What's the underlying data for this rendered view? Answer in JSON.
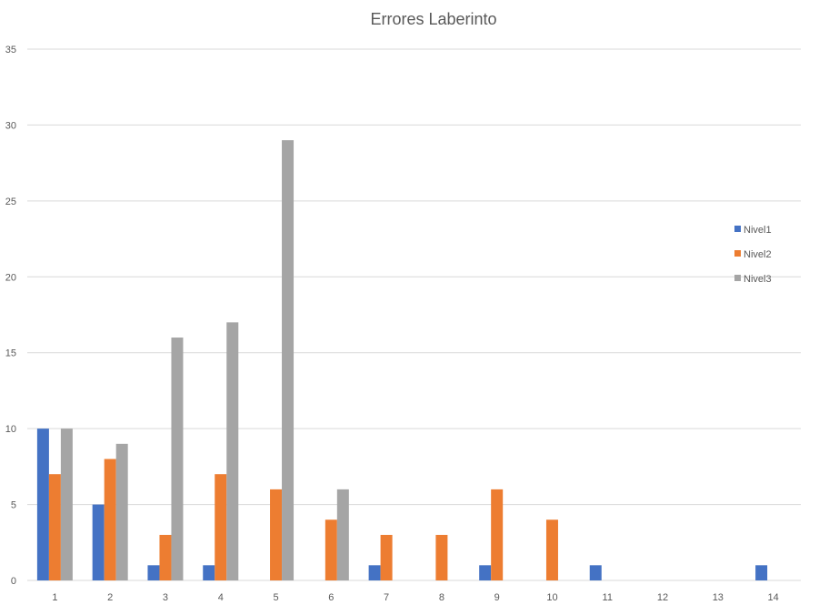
{
  "chart_data": {
    "type": "bar",
    "title": "Errores Laberinto",
    "xlabel": "",
    "ylabel": "",
    "categories": [
      "1",
      "2",
      "3",
      "4",
      "5",
      "6",
      "7",
      "8",
      "9",
      "10",
      "11",
      "12",
      "13",
      "14"
    ],
    "ylim": [
      0,
      35
    ],
    "yticks": [
      0,
      5,
      10,
      15,
      20,
      25,
      30,
      35
    ],
    "grid": true,
    "legend_position": "right",
    "series": [
      {
        "name": "Nivel1",
        "color": "#4472c4",
        "values": [
          10,
          5,
          1,
          1,
          0,
          0,
          1,
          0,
          1,
          0,
          1,
          0,
          0,
          1
        ]
      },
      {
        "name": "Nivel2",
        "color": "#ed7d31",
        "values": [
          7,
          8,
          3,
          7,
          6,
          4,
          3,
          3,
          6,
          4,
          0,
          0,
          0,
          0
        ]
      },
      {
        "name": "Nivel3",
        "color": "#a5a5a5",
        "values": [
          10,
          9,
          16,
          17,
          29,
          6,
          0,
          0,
          0,
          0,
          0,
          0,
          0,
          0
        ]
      }
    ]
  }
}
